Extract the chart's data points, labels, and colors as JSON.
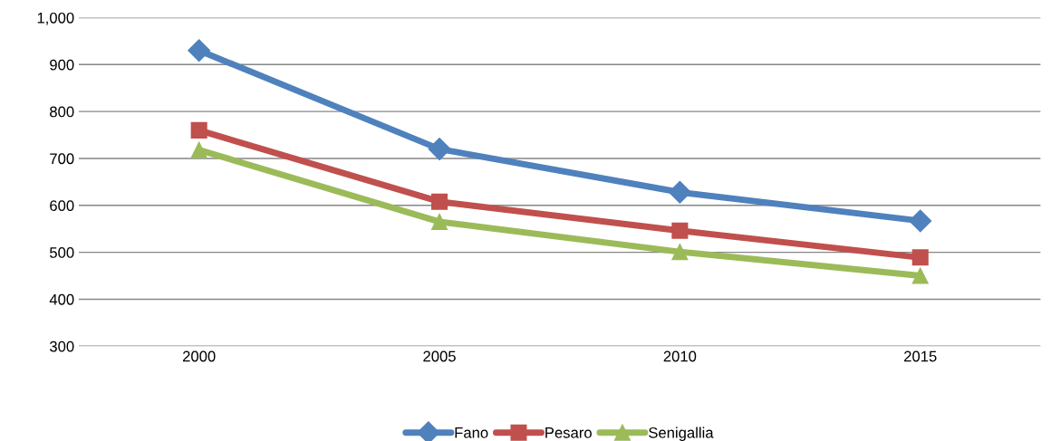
{
  "chart_data": {
    "type": "line",
    "categories": [
      "2000",
      "2005",
      "2010",
      "2015"
    ],
    "series": [
      {
        "name": "Fano",
        "color": "#4f81bd",
        "marker": "diamond",
        "values": [
          930,
          720,
          628,
          567
        ]
      },
      {
        "name": "Pesaro",
        "color": "#c0504d",
        "marker": "square",
        "values": [
          760,
          608,
          546,
          489
        ]
      },
      {
        "name": "Senigallia",
        "color": "#9bbb59",
        "marker": "triangle",
        "values": [
          718,
          565,
          501,
          450
        ]
      }
    ],
    "ylim": [
      300,
      1000
    ],
    "yticks": [
      300,
      400,
      500,
      600,
      700,
      800,
      900,
      {
        "value": 1000,
        "label": "1,000"
      }
    ],
    "grid": "y",
    "legend": "bottom",
    "line_style": "solid"
  }
}
